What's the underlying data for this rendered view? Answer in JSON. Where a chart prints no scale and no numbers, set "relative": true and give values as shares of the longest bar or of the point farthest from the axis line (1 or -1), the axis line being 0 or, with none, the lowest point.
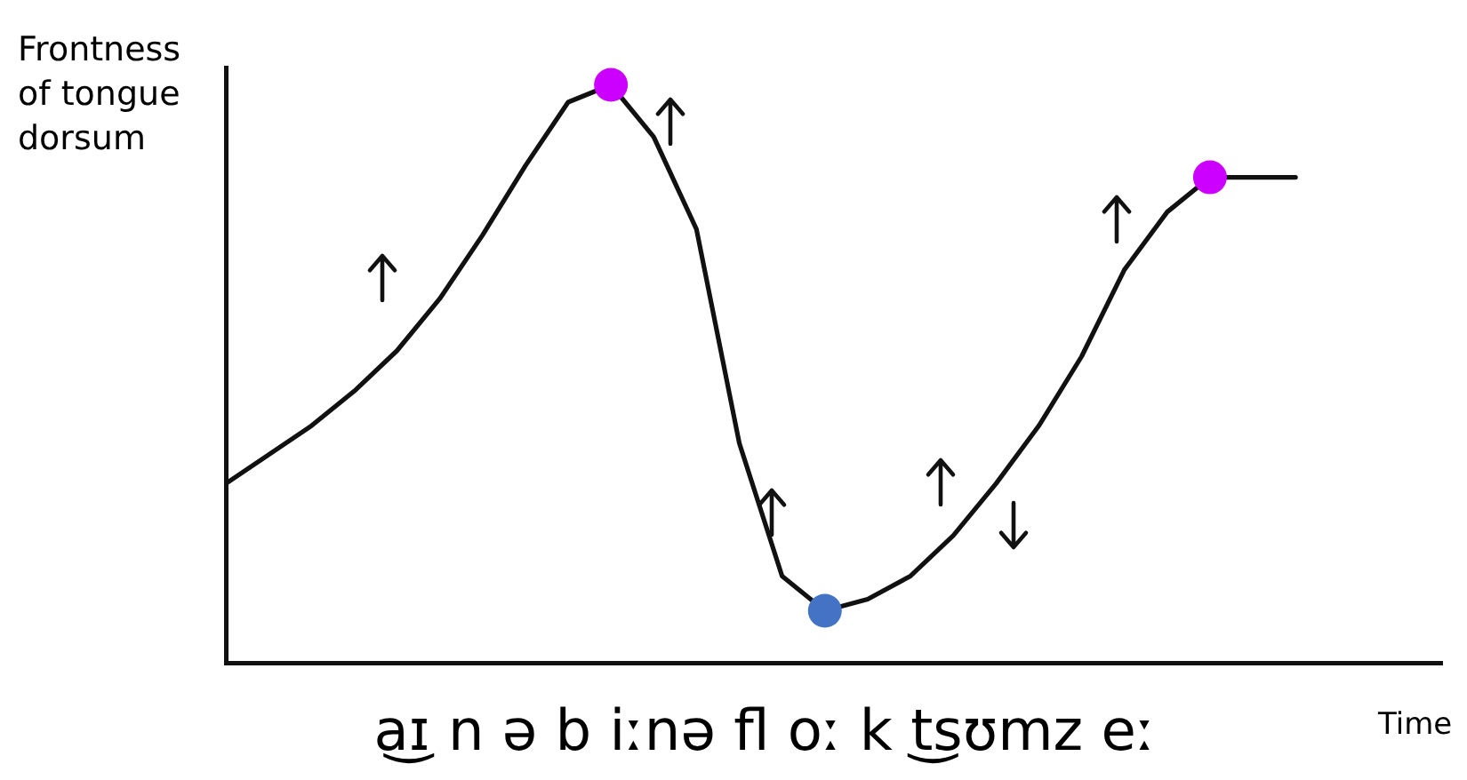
{
  "chart_data": {
    "type": "line",
    "relative": true,
    "ylabel": "Frontness of tongue dorsum",
    "xlabel": "Time",
    "annotations": [
      "a͜ɪ n ə b iːnə fl oː k t͜sʊmz eː"
    ],
    "categories": [
      null,
      null,
      null,
      null,
      null,
      null,
      null,
      null,
      null,
      null,
      null,
      null,
      null,
      null,
      null,
      null,
      null,
      null,
      null,
      null,
      null,
      null,
      null,
      null,
      null,
      null
    ],
    "legend": false,
    "grid": false,
    "line_style": "solid",
    "series": [
      {
        "color": "#111111",
        "colors": [
          null,
          null,
          null,
          null,
          null,
          null,
          null,
          null,
          null,
          "#cc00ff",
          null,
          null,
          null,
          null,
          "#4472c4",
          null,
          null,
          null,
          null,
          null,
          null,
          null,
          null,
          "#cc00ff",
          null,
          null
        ],
        "values": [
          0.31,
          0.36,
          0.41,
          0.47,
          0.54,
          0.63,
          0.74,
          0.86,
          0.97,
          1,
          0.91,
          0.75,
          0.38,
          0.15,
          0.09,
          0.11,
          0.15,
          0.22,
          0.31,
          0.41,
          0.53,
          0.68,
          0.78,
          0.84,
          0.84,
          0.84
        ]
      }
    ]
  }
}
